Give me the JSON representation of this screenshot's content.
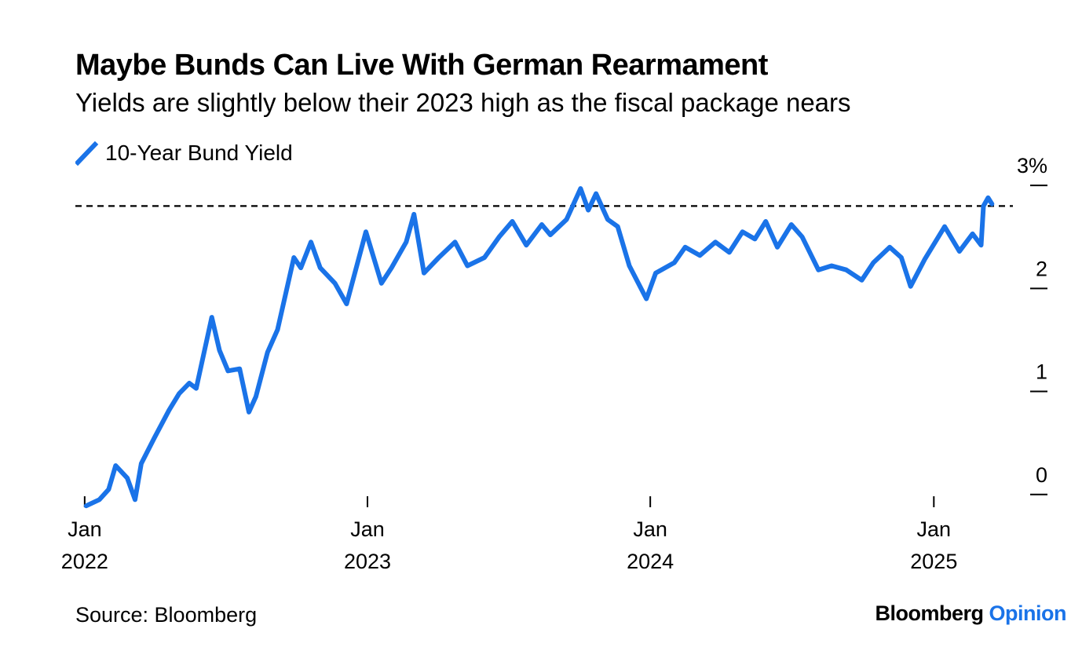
{
  "title": "Maybe Bunds Can Live With German Rearmament",
  "subtitle": "Yields are slightly below their 2023 high as the fiscal package nears",
  "source": "Source: Bloomberg",
  "brand": {
    "name": "Bloomberg",
    "accent": "Opinion"
  },
  "colors": {
    "series": "#1a73e8",
    "text": "#000000",
    "reference": "#000000"
  },
  "chart_data": {
    "type": "line",
    "legend": "top-left",
    "grid": false,
    "series": [
      {
        "name": "10-Year Bund Yield",
        "color": "#1a73e8",
        "points": [
          [
            "2022-01-03",
            -0.11
          ],
          [
            "2022-01-20",
            -0.05
          ],
          [
            "2022-02-01",
            0.05
          ],
          [
            "2022-02-10",
            0.28
          ],
          [
            "2022-02-25",
            0.16
          ],
          [
            "2022-03-07",
            -0.05
          ],
          [
            "2022-03-15",
            0.3
          ],
          [
            "2022-04-01",
            0.55
          ],
          [
            "2022-04-20",
            0.82
          ],
          [
            "2022-05-03",
            0.98
          ],
          [
            "2022-05-16",
            1.08
          ],
          [
            "2022-05-25",
            1.03
          ],
          [
            "2022-06-14",
            1.72
          ],
          [
            "2022-06-24",
            1.4
          ],
          [
            "2022-07-05",
            1.2
          ],
          [
            "2022-07-20",
            1.22
          ],
          [
            "2022-08-01",
            0.8
          ],
          [
            "2022-08-10",
            0.95
          ],
          [
            "2022-08-25",
            1.38
          ],
          [
            "2022-09-07",
            1.6
          ],
          [
            "2022-09-28",
            2.3
          ],
          [
            "2022-10-07",
            2.2
          ],
          [
            "2022-10-20",
            2.45
          ],
          [
            "2022-11-01",
            2.2
          ],
          [
            "2022-11-20",
            2.05
          ],
          [
            "2022-12-05",
            1.85
          ],
          [
            "2022-12-30",
            2.55
          ],
          [
            "2023-01-19",
            2.05
          ],
          [
            "2023-02-01",
            2.2
          ],
          [
            "2023-02-20",
            2.45
          ],
          [
            "2023-03-02",
            2.72
          ],
          [
            "2023-03-15",
            2.15
          ],
          [
            "2023-04-03",
            2.3
          ],
          [
            "2023-04-24",
            2.45
          ],
          [
            "2023-05-10",
            2.22
          ],
          [
            "2023-06-01",
            2.3
          ],
          [
            "2023-06-20",
            2.5
          ],
          [
            "2023-07-07",
            2.65
          ],
          [
            "2023-07-25",
            2.42
          ],
          [
            "2023-08-14",
            2.62
          ],
          [
            "2023-08-25",
            2.52
          ],
          [
            "2023-09-15",
            2.67
          ],
          [
            "2023-10-03",
            2.97
          ],
          [
            "2023-10-13",
            2.76
          ],
          [
            "2023-10-23",
            2.92
          ],
          [
            "2023-11-07",
            2.67
          ],
          [
            "2023-11-20",
            2.6
          ],
          [
            "2023-12-05",
            2.22
          ],
          [
            "2023-12-27",
            1.9
          ],
          [
            "2024-01-08",
            2.15
          ],
          [
            "2024-02-01",
            2.25
          ],
          [
            "2024-02-15",
            2.4
          ],
          [
            "2024-03-05",
            2.32
          ],
          [
            "2024-03-25",
            2.45
          ],
          [
            "2024-04-12",
            2.35
          ],
          [
            "2024-04-29",
            2.55
          ],
          [
            "2024-05-15",
            2.48
          ],
          [
            "2024-05-29",
            2.65
          ],
          [
            "2024-06-13",
            2.4
          ],
          [
            "2024-07-01",
            2.62
          ],
          [
            "2024-07-15",
            2.5
          ],
          [
            "2024-08-05",
            2.18
          ],
          [
            "2024-08-22",
            2.22
          ],
          [
            "2024-09-10",
            2.18
          ],
          [
            "2024-09-30",
            2.08
          ],
          [
            "2024-10-15",
            2.25
          ],
          [
            "2024-11-05",
            2.4
          ],
          [
            "2024-11-20",
            2.3
          ],
          [
            "2024-12-02",
            2.02
          ],
          [
            "2024-12-20",
            2.28
          ],
          [
            "2025-01-15",
            2.6
          ],
          [
            "2025-02-03",
            2.36
          ],
          [
            "2025-02-20",
            2.53
          ],
          [
            "2025-03-03",
            2.42
          ],
          [
            "2025-03-06",
            2.8
          ],
          [
            "2025-03-12",
            2.88
          ],
          [
            "2025-03-17",
            2.82
          ]
        ]
      }
    ],
    "reference_line": {
      "value": 2.8,
      "style": "dashed"
    },
    "y_axis": {
      "ticks": [
        0,
        1,
        2,
        3
      ],
      "tick_labels": [
        "0",
        "1",
        "2",
        "3%"
      ],
      "range": [
        -0.2,
        3.1
      ]
    },
    "x_axis": {
      "range": [
        "2021-12-20",
        "2025-04-10"
      ],
      "ticks": [
        {
          "date": "2022-01-01",
          "month": "Jan",
          "year": "2022"
        },
        {
          "date": "2023-01-01",
          "month": "Jan",
          "year": "2023"
        },
        {
          "date": "2024-01-01",
          "month": "Jan",
          "year": "2024"
        },
        {
          "date": "2025-01-01",
          "month": "Jan",
          "year": "2025"
        }
      ]
    }
  }
}
